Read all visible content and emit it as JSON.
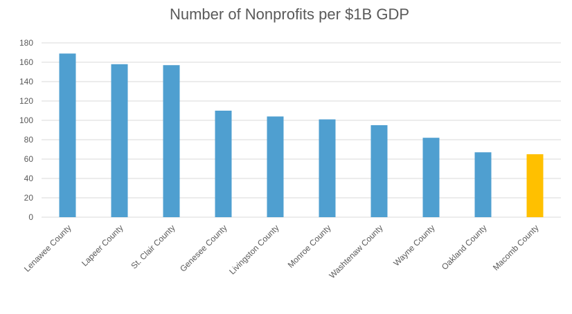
{
  "chart_data": {
    "type": "bar",
    "title": "Number of Nonprofits per $1B GDP",
    "xlabel": "",
    "ylabel": "",
    "ylim": [
      0,
      180
    ],
    "yticks": [
      0,
      20,
      40,
      60,
      80,
      100,
      120,
      140,
      160,
      180
    ],
    "grid": true,
    "legend": "none",
    "categories": [
      "Lenawee County",
      "Lapeer County",
      "St. Clair County",
      "Genesee County",
      "Livingston County",
      "Monroe County",
      "Washtenaw County",
      "Wayne County",
      "Oakland County",
      "Macomb County"
    ],
    "values": [
      169,
      158,
      157,
      110,
      104,
      101,
      95,
      82,
      67,
      65
    ],
    "colors": {
      "default": "#4f9fd0",
      "highlight": "#ffc000",
      "highlight_category": "Macomb County"
    }
  }
}
